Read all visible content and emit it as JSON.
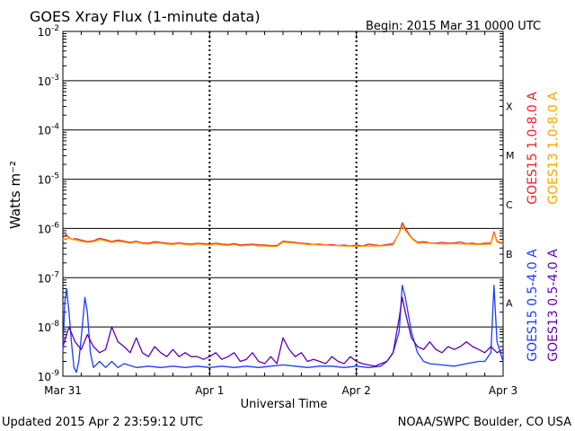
{
  "header": {
    "title": "GOES Xray Flux (1-minute data)",
    "begin": "Begin:  2015 Mar 31 0000 UTC"
  },
  "footer": {
    "updated": "Updated 2015 Apr  2 23:59:12 UTC",
    "source": "NOAA/SWPC Boulder, CO USA"
  },
  "chart_data": {
    "type": "line",
    "title": "GOES Xray Flux (1-minute data)",
    "xlabel": "Universal Time",
    "ylabel": "Watts m⁻²",
    "yscale": "log",
    "ylim": [
      1e-09,
      0.01
    ],
    "xlim": [
      0,
      72
    ],
    "x_unit": "hours since 2015 Mar 31 0000 UTC",
    "x_ticks": [
      {
        "value": 0,
        "label": "Mar 31"
      },
      {
        "value": 24,
        "label": "Apr 1"
      },
      {
        "value": 48,
        "label": "Apr 2"
      },
      {
        "value": 72,
        "label": "Apr 3"
      }
    ],
    "y_ticks": [
      {
        "value": 1e-09,
        "base": "10",
        "exp": "-9"
      },
      {
        "value": 1e-08,
        "base": "10",
        "exp": "-8"
      },
      {
        "value": 1e-07,
        "base": "10",
        "exp": "-7"
      },
      {
        "value": 1e-06,
        "base": "10",
        "exp": "-6"
      },
      {
        "value": 1e-05,
        "base": "10",
        "exp": "-5"
      },
      {
        "value": 0.0001,
        "base": "10",
        "exp": "-4"
      },
      {
        "value": 0.001,
        "base": "10",
        "exp": "-3"
      },
      {
        "value": 0.01,
        "base": "10",
        "exp": "-2"
      }
    ],
    "flare_classes": [
      {
        "label": "A",
        "value": 1e-08
      },
      {
        "label": "B",
        "value": 1e-07
      },
      {
        "label": "C",
        "value": 1e-06
      },
      {
        "label": "M",
        "value": 1e-05
      },
      {
        "label": "X",
        "value": 0.0001
      }
    ],
    "grid": true,
    "series": [
      {
        "name": "GOES15 1.0-8.0 A",
        "color": "#ee2020",
        "x": [
          0,
          0.5,
          1,
          1.5,
          2,
          3,
          4,
          5,
          6,
          7,
          8,
          9,
          10,
          11,
          12,
          13,
          14,
          15,
          16,
          17,
          18,
          19,
          20,
          21,
          22,
          23,
          24,
          25,
          26,
          27,
          28,
          29,
          30,
          31,
          32,
          33,
          34,
          35,
          36,
          38,
          39,
          40,
          41,
          42,
          43,
          44,
          45,
          46,
          47,
          48,
          49,
          50,
          51,
          52,
          53,
          54,
          55,
          55.5,
          56,
          57,
          58,
          59,
          60,
          61,
          62,
          63,
          64,
          65,
          66,
          67,
          68,
          69,
          70,
          70.5,
          71,
          72
        ],
        "y": [
          6.5e-07,
          7.5e-07,
          6.5e-07,
          6e-07,
          6.2e-07,
          5.8e-07,
          5.4e-07,
          5.6e-07,
          6.3e-07,
          5.9e-07,
          5.4e-07,
          5.8e-07,
          5.5e-07,
          5.2e-07,
          5.5e-07,
          5.1e-07,
          5e-07,
          5.4e-07,
          5.2e-07,
          5e-07,
          4.9e-07,
          5.1e-07,
          4.9e-07,
          4.8e-07,
          5e-07,
          4.9e-07,
          4.8e-07,
          5e-07,
          4.8e-07,
          4.7e-07,
          4.9e-07,
          4.6e-07,
          4.7e-07,
          4.8e-07,
          4.6e-07,
          4.6e-07,
          4.5e-07,
          4.5e-07,
          5.5e-07,
          5.2e-07,
          5e-07,
          4.9e-07,
          4.7e-07,
          4.8e-07,
          4.6e-07,
          4.7e-07,
          4.5e-07,
          4.6e-07,
          4.4e-07,
          4.6e-07,
          4.4e-07,
          4.8e-07,
          4.6e-07,
          4.5e-07,
          4.7e-07,
          4.9e-07,
          8e-07,
          1.3e-06,
          1e-06,
          6.5e-07,
          5.2e-07,
          5.4e-07,
          5.1e-07,
          5e-07,
          5.2e-07,
          5e-07,
          5.1e-07,
          5.3e-07,
          4.9e-07,
          5e-07,
          4.8e-07,
          5e-07,
          5e-07,
          8.5e-07,
          5.5e-07,
          5e-07
        ]
      },
      {
        "name": "GOES13 1.0-8.0 A",
        "color": "#ffa200",
        "x": [
          0,
          1,
          2,
          3,
          4,
          5,
          6,
          7,
          8,
          9,
          10,
          11,
          12,
          13,
          14,
          15,
          16,
          17,
          18,
          19,
          20,
          21,
          22,
          23,
          24,
          25,
          26,
          27,
          28,
          29,
          30,
          31,
          32,
          33,
          34,
          35,
          36,
          38,
          40,
          42,
          44,
          46,
          48,
          50,
          52,
          54,
          55.5,
          57,
          58,
          60,
          62,
          64,
          66,
          68,
          70,
          70.5,
          71,
          72
        ],
        "y": [
          6e-07,
          6.3e-07,
          5.8e-07,
          5.5e-07,
          5.2e-07,
          5.4e-07,
          5.9e-07,
          5.6e-07,
          5.2e-07,
          5.5e-07,
          5.3e-07,
          5e-07,
          5.3e-07,
          4.9e-07,
          4.8e-07,
          5.1e-07,
          5e-07,
          4.8e-07,
          4.7e-07,
          4.9e-07,
          4.7e-07,
          4.6e-07,
          4.8e-07,
          4.7e-07,
          4.6e-07,
          4.8e-07,
          4.6e-07,
          4.5e-07,
          4.7e-07,
          4.4e-07,
          4.5e-07,
          4.6e-07,
          4.4e-07,
          4.4e-07,
          4.3e-07,
          4.3e-07,
          5.3e-07,
          5e-07,
          4.7e-07,
          4.6e-07,
          4.5e-07,
          4.4e-07,
          4.3e-07,
          4.4e-07,
          4.4e-07,
          4.6e-07,
          1.1e-06,
          6.3e-07,
          5e-07,
          5e-07,
          4.8e-07,
          4.9e-07,
          4.8e-07,
          4.7e-07,
          4.8e-07,
          8e-07,
          5.3e-07,
          4.8e-07
        ]
      },
      {
        "name": "GOES15 0.5-4.0 A",
        "color": "#1a3dff",
        "x": [
          0,
          0.3,
          0.6,
          1,
          1.4,
          1.8,
          2.2,
          2.6,
          3,
          3.6,
          4,
          4.5,
          5,
          6,
          7,
          8,
          9,
          10,
          12,
          14,
          16,
          18,
          20,
          22,
          24,
          26,
          28,
          30,
          32,
          34,
          36,
          38,
          40,
          42,
          44,
          46,
          48,
          50,
          52,
          53,
          54,
          55,
          55.5,
          56,
          57,
          58,
          59,
          60,
          62,
          64,
          66,
          68,
          69,
          70,
          70.5,
          71,
          72
        ],
        "y": [
          3e-09,
          3e-08,
          6e-08,
          2e-08,
          5e-09,
          1.5e-09,
          1.2e-09,
          2e-09,
          6e-09,
          4e-08,
          2e-08,
          3e-09,
          1.5e-09,
          2e-09,
          1.5e-09,
          2e-09,
          1.5e-09,
          1.8e-09,
          1.5e-09,
          1.6e-09,
          1.5e-09,
          1.6e-09,
          1.5e-09,
          1.6e-09,
          1.5e-09,
          1.6e-09,
          1.5e-09,
          1.6e-09,
          1.5e-09,
          1.6e-09,
          1.7e-09,
          1.6e-09,
          1.5e-09,
          1.6e-09,
          1.6e-09,
          1.5e-09,
          1.6e-09,
          1.5e-09,
          1.6e-09,
          2e-09,
          3e-09,
          8e-09,
          7e-08,
          4e-08,
          8e-09,
          3e-09,
          2e-09,
          1.8e-09,
          1.7e-09,
          1.6e-09,
          1.8e-09,
          2e-09,
          2e-09,
          3e-09,
          7e-08,
          5e-09,
          2e-09
        ]
      },
      {
        "name": "GOES13 0.5-4.0 A",
        "color": "#5f00b5",
        "x": [
          0,
          1,
          2,
          3,
          4,
          5,
          6,
          7,
          8,
          9,
          10,
          11,
          12,
          13,
          14,
          15,
          16,
          17,
          18,
          19,
          20,
          21,
          22,
          23,
          24,
          25,
          26,
          27,
          28,
          29,
          30,
          31,
          32,
          33,
          34,
          35,
          36,
          37,
          38,
          39,
          40,
          41,
          42,
          43,
          44,
          45,
          46,
          47,
          48,
          49,
          50,
          51,
          52,
          53,
          54,
          55,
          55.5,
          56,
          57,
          58,
          59,
          60,
          61,
          62,
          63,
          64,
          65,
          66,
          67,
          68,
          69,
          70,
          71,
          72
        ],
        "y": [
          4e-09,
          1e-08,
          5e-09,
          3.5e-09,
          7e-09,
          4e-09,
          3e-09,
          3.5e-09,
          1e-08,
          5e-09,
          4e-09,
          3e-09,
          6e-09,
          3e-09,
          2.5e-09,
          4e-09,
          3e-09,
          2.5e-09,
          3.5e-09,
          2.5e-09,
          3e-09,
          2.5e-09,
          2.5e-09,
          2.2e-09,
          2.5e-09,
          3e-09,
          2.2e-09,
          2.5e-09,
          3e-09,
          2e-09,
          2.2e-09,
          3e-09,
          2e-09,
          1.8e-09,
          2.5e-09,
          1.8e-09,
          6e-09,
          3.5e-09,
          2.5e-09,
          3e-09,
          2e-09,
          2.2e-09,
          2e-09,
          1.8e-09,
          2.5e-09,
          2e-09,
          1.8e-09,
          2.5e-09,
          2e-09,
          1.8e-09,
          1.7e-09,
          1.6e-09,
          1.8e-09,
          2e-09,
          3e-09,
          1.5e-08,
          4e-08,
          2e-08,
          6e-09,
          4e-09,
          3.5e-09,
          5e-09,
          3.5e-09,
          3e-09,
          4e-09,
          3.5e-09,
          4e-09,
          5e-09,
          4e-09,
          3.5e-09,
          3e-09,
          4e-09,
          3e-09,
          3.5e-09
        ]
      }
    ]
  }
}
